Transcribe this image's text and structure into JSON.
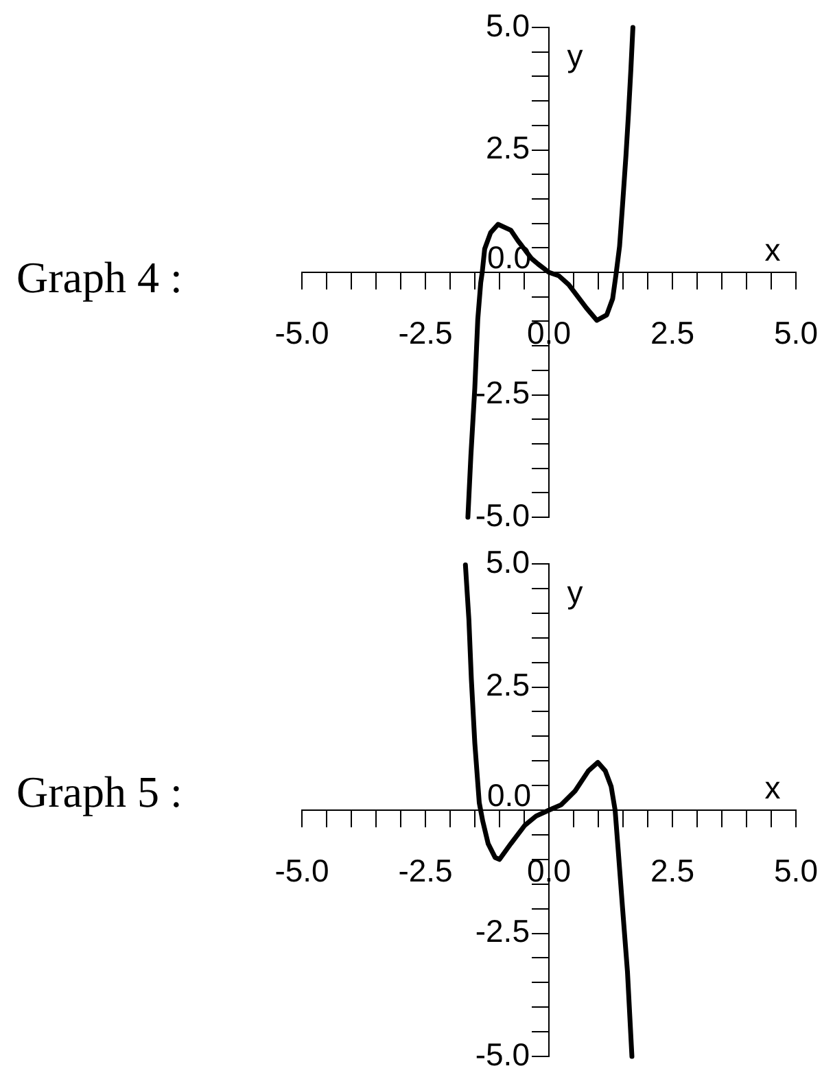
{
  "chart_data": [
    {
      "type": "line",
      "title": "Graph 4 :",
      "xlabel": "x",
      "ylabel": "y",
      "xlim": [
        -5,
        5
      ],
      "ylim": [
        -5,
        5
      ],
      "xticks": [
        {
          "value": -5,
          "label": "-5.0"
        },
        {
          "value": -4.5,
          "label": null
        },
        {
          "value": -4,
          "label": null
        },
        {
          "value": -3.5,
          "label": null
        },
        {
          "value": -3,
          "label": null
        },
        {
          "value": -2.5,
          "label": "-2.5"
        },
        {
          "value": -2,
          "label": null
        },
        {
          "value": -1.5,
          "label": null
        },
        {
          "value": -1,
          "label": null
        },
        {
          "value": -0.5,
          "label": null
        },
        {
          "value": 0,
          "label": "0.0"
        },
        {
          "value": 0.5,
          "label": null
        },
        {
          "value": 1,
          "label": null
        },
        {
          "value": 1.5,
          "label": null
        },
        {
          "value": 2,
          "label": null
        },
        {
          "value": 2.5,
          "label": "2.5"
        },
        {
          "value": 3,
          "label": null
        },
        {
          "value": 3.5,
          "label": null
        },
        {
          "value": 4,
          "label": null
        },
        {
          "value": 4.5,
          "label": null
        },
        {
          "value": 5,
          "label": "5.0"
        }
      ],
      "yticks": [
        {
          "value": -5,
          "label": "-5.0"
        },
        {
          "value": -4.5,
          "label": null
        },
        {
          "value": -4,
          "label": null
        },
        {
          "value": -3.5,
          "label": null
        },
        {
          "value": -3,
          "label": null
        },
        {
          "value": -2.5,
          "label": "-2.5"
        },
        {
          "value": -2,
          "label": null
        },
        {
          "value": -1.5,
          "label": null
        },
        {
          "value": -1,
          "label": null
        },
        {
          "value": -0.5,
          "label": null
        },
        {
          "value": 0,
          "label": "0.0"
        },
        {
          "value": 0.5,
          "label": null
        },
        {
          "value": 1,
          "label": null
        },
        {
          "value": 1.5,
          "label": null
        },
        {
          "value": 2,
          "label": null
        },
        {
          "value": 2.5,
          "label": "2.5"
        },
        {
          "value": 3,
          "label": null
        },
        {
          "value": 3.5,
          "label": null
        },
        {
          "value": 4,
          "label": null
        },
        {
          "value": 4.5,
          "label": null
        },
        {
          "value": 5,
          "label": "5.0"
        }
      ],
      "x": [
        -1.64,
        -1.58,
        -1.5,
        -1.44,
        -1.38,
        -1.35,
        -1.3,
        -1.18,
        -1.03,
        -0.77,
        -0.63,
        -0.35,
        -0.22,
        0,
        0.2,
        0.4,
        0.76,
        0.97,
        1.17,
        1.29,
        1.36,
        1.43,
        1.49,
        1.56,
        1.61,
        1.66,
        1.7
      ],
      "series": [
        {
          "color": "#000000",
          "values": [
            -5.0,
            -3.75,
            -2.36,
            -0.96,
            -0.21,
            0,
            0.48,
            0.81,
            0.98,
            0.86,
            0.65,
            0.28,
            0.17,
            0,
            -0.07,
            -0.25,
            -0.73,
            -0.98,
            -0.87,
            -0.54,
            -0.03,
            0.53,
            1.37,
            2.39,
            3.23,
            4.16,
            5.0
          ]
        }
      ],
      "marker": "none",
      "line_style": "solid"
    },
    {
      "type": "line",
      "title": "Graph 5 :",
      "xlabel": "x",
      "ylabel": "y",
      "xlim": [
        -5,
        5
      ],
      "ylim": [
        -5,
        5
      ],
      "xticks": [
        {
          "value": -5,
          "label": "-5.0"
        },
        {
          "value": -4.5,
          "label": null
        },
        {
          "value": -4,
          "label": null
        },
        {
          "value": -3.5,
          "label": null
        },
        {
          "value": -3,
          "label": null
        },
        {
          "value": -2.5,
          "label": "-2.5"
        },
        {
          "value": -2,
          "label": null
        },
        {
          "value": -1.5,
          "label": null
        },
        {
          "value": -1,
          "label": null
        },
        {
          "value": -0.5,
          "label": null
        },
        {
          "value": 0,
          "label": "0.0"
        },
        {
          "value": 0.5,
          "label": null
        },
        {
          "value": 1,
          "label": null
        },
        {
          "value": 1.5,
          "label": null
        },
        {
          "value": 2,
          "label": null
        },
        {
          "value": 2.5,
          "label": "2.5"
        },
        {
          "value": 3,
          "label": null
        },
        {
          "value": 3.5,
          "label": null
        },
        {
          "value": 4,
          "label": null
        },
        {
          "value": 4.5,
          "label": null
        },
        {
          "value": 5,
          "label": "5.0"
        }
      ],
      "yticks": [
        {
          "value": -5,
          "label": "-5.0"
        },
        {
          "value": -4.5,
          "label": null
        },
        {
          "value": -4,
          "label": null
        },
        {
          "value": -3.5,
          "label": null
        },
        {
          "value": -3,
          "label": null
        },
        {
          "value": -2.5,
          "label": "-2.5"
        },
        {
          "value": -2,
          "label": null
        },
        {
          "value": -1.5,
          "label": null
        },
        {
          "value": -1,
          "label": null
        },
        {
          "value": -0.5,
          "label": null
        },
        {
          "value": 0,
          "label": "0.0"
        },
        {
          "value": 0.5,
          "label": null
        },
        {
          "value": 1,
          "label": null
        },
        {
          "value": 1.5,
          "label": null
        },
        {
          "value": 2,
          "label": null
        },
        {
          "value": 2.5,
          "label": "2.5"
        },
        {
          "value": 3,
          "label": null
        },
        {
          "value": 3.5,
          "label": null
        },
        {
          "value": 4,
          "label": null
        },
        {
          "value": 4.5,
          "label": null
        },
        {
          "value": 5,
          "label": "5.0"
        }
      ],
      "x": [
        -1.69,
        -1.62,
        -1.57,
        -1.5,
        -1.41,
        -1.34,
        -1.23,
        -1.09,
        -1.0,
        -0.77,
        -0.49,
        -0.26,
        0,
        0.25,
        0.53,
        0.8,
        0.99,
        1.14,
        1.26,
        1.34,
        1.4,
        1.49,
        1.59,
        1.68
      ],
      "series": [
        {
          "color": "#000000",
          "values": [
            4.98,
            3.87,
            2.66,
            1.36,
            0.15,
            -0.22,
            -0.68,
            -0.96,
            -1.0,
            -0.68,
            -0.31,
            -0.12,
            0,
            0.11,
            0.39,
            0.8,
            0.97,
            0.8,
            0.48,
            0,
            -0.78,
            -1.98,
            -3.28,
            -5.0
          ]
        }
      ],
      "marker": "none",
      "line_style": "solid"
    }
  ]
}
